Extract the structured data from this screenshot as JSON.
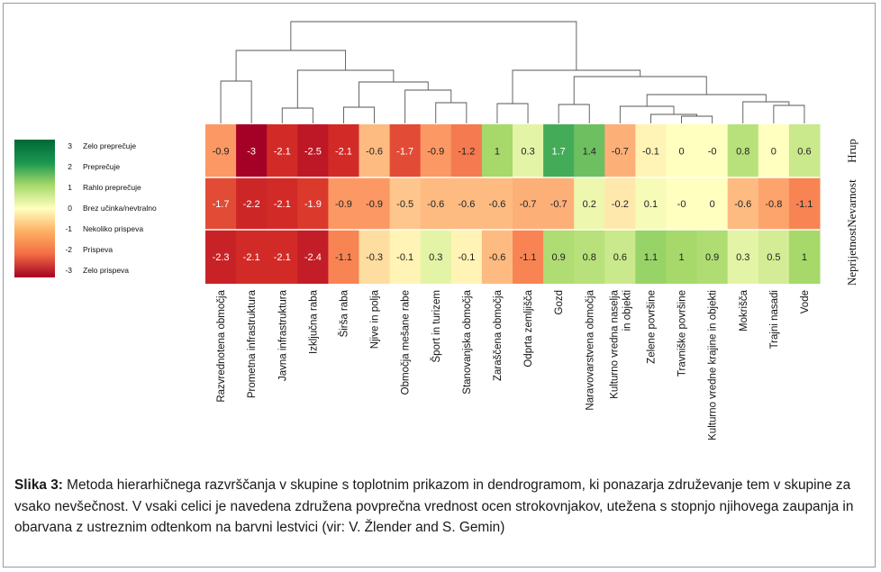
{
  "chart_data": {
    "type": "heatmap",
    "rows": [
      "Hrup",
      "Nevarnost",
      "Neprijetnost"
    ],
    "columns": [
      [
        "Razvrednotena območja"
      ],
      [
        "Prometna infrastruktura"
      ],
      [
        "Javna infrastruktura"
      ],
      [
        "Izključna raba"
      ],
      [
        "Širša raba"
      ],
      [
        "Njive in polja"
      ],
      [
        "Območja mešane rabe"
      ],
      [
        "Šport in turizem"
      ],
      [
        "Stanovanjska območja"
      ],
      [
        "Zaraščena območja"
      ],
      [
        "Odprta zemljišča"
      ],
      [
        "Gozd"
      ],
      [
        "Naravovarstvena območja"
      ],
      [
        "Kulturno vredna naselja",
        "in objekti"
      ],
      [
        "Zelene površine"
      ],
      [
        "Travniške površine"
      ],
      [
        "Kulturno vredne krajine in objekti"
      ],
      [
        "Mokrišča"
      ],
      [
        "Trajni nasadi"
      ],
      [
        "Vode"
      ]
    ],
    "values": [
      [
        -0.9,
        -3,
        -2.1,
        -2.5,
        -2.1,
        -0.6,
        -1.7,
        -0.9,
        -1.2,
        1,
        0.3,
        1.7,
        1.4,
        -0.7,
        -0.1,
        0,
        0,
        0.8,
        0,
        0.6
      ],
      [
        -1.7,
        -2.2,
        -2.1,
        -1.9,
        -0.9,
        -0.9,
        -0.5,
        -0.6,
        -0.6,
        -0.6,
        -0.7,
        -0.7,
        0.2,
        -0.2,
        0.1,
        0,
        0,
        -0.6,
        -0.8,
        -1.1
      ],
      [
        -2.3,
        -2.1,
        -2.1,
        -2.4,
        -1.1,
        -0.3,
        -0.1,
        0.3,
        -0.1,
        -0.6,
        -1.1,
        0.9,
        0.8,
        0.6,
        1.1,
        1,
        0.9,
        0.3,
        0.5,
        1
      ]
    ],
    "value_labels": [
      [
        "-0.9",
        "-3",
        "-2.1",
        "-2.5",
        "-2.1",
        "-0.6",
        "-1.7",
        "-0.9",
        "-1.2",
        "1",
        "0.3",
        "1.7",
        "1.4",
        "-0.7",
        "-0.1",
        "0",
        "-0",
        "0.8",
        "0",
        "0.6"
      ],
      [
        "-1.7",
        "-2.2",
        "-2.1",
        "-1.9",
        "-0.9",
        "-0.9",
        "-0.5",
        "-0.6",
        "-0.6",
        "-0.6",
        "-0.7",
        "-0.7",
        "0.2",
        "-0.2",
        "0.1",
        "-0",
        "0",
        "-0.6",
        "-0.8",
        "-1.1"
      ],
      [
        "-2.3",
        "-2.1",
        "-2.1",
        "-2.4",
        "-1.1",
        "-0.3",
        "-0.1",
        "0.3",
        "-0.1",
        "-0.6",
        "-1.1",
        "0.9",
        "0.8",
        "0.6",
        "1.1",
        "1",
        "0.9",
        "0.3",
        "0.5",
        "1"
      ]
    ],
    "value_range": [
      -3,
      3
    ],
    "legend": {
      "placement": "left",
      "entries": [
        {
          "value": "3",
          "label": "Zelo preprečuje"
        },
        {
          "value": "2",
          "label": "Preprečuje"
        },
        {
          "value": "1",
          "label": "Rahlo preprečuje"
        },
        {
          "value": "0",
          "label": "Brez učinka/nevtralno"
        },
        {
          "value": "-1",
          "label": "Nekoliko prispeva"
        },
        {
          "value": "-2",
          "label": "Prispeva"
        },
        {
          "value": "-3",
          "label": "Zelo prispeva"
        }
      ]
    },
    "colorscale": [
      "#a50026",
      "#f46d43",
      "#fee08b",
      "#ffffbf",
      "#d9ef8b",
      "#66bd63",
      "#006837"
    ],
    "dendrogram": "column clustering tree shown above heatmap"
  },
  "caption": {
    "label": "Slika 3:",
    "text": " Metoda hierarhičnega razvrščanja v skupine s toplotnim prikazom in dendrogramom, ki ponazarja združevanje tem v skupine za vsako nevšečnost. V vsaki celici je navedena združena povprečna vrednost ocen strokovnjakov, utežena s stopnjo njihovega zaupanja in obarvana z ustreznim odtenkom na barvni lestvici (vir: V. Žlender and S. Gemin)"
  }
}
